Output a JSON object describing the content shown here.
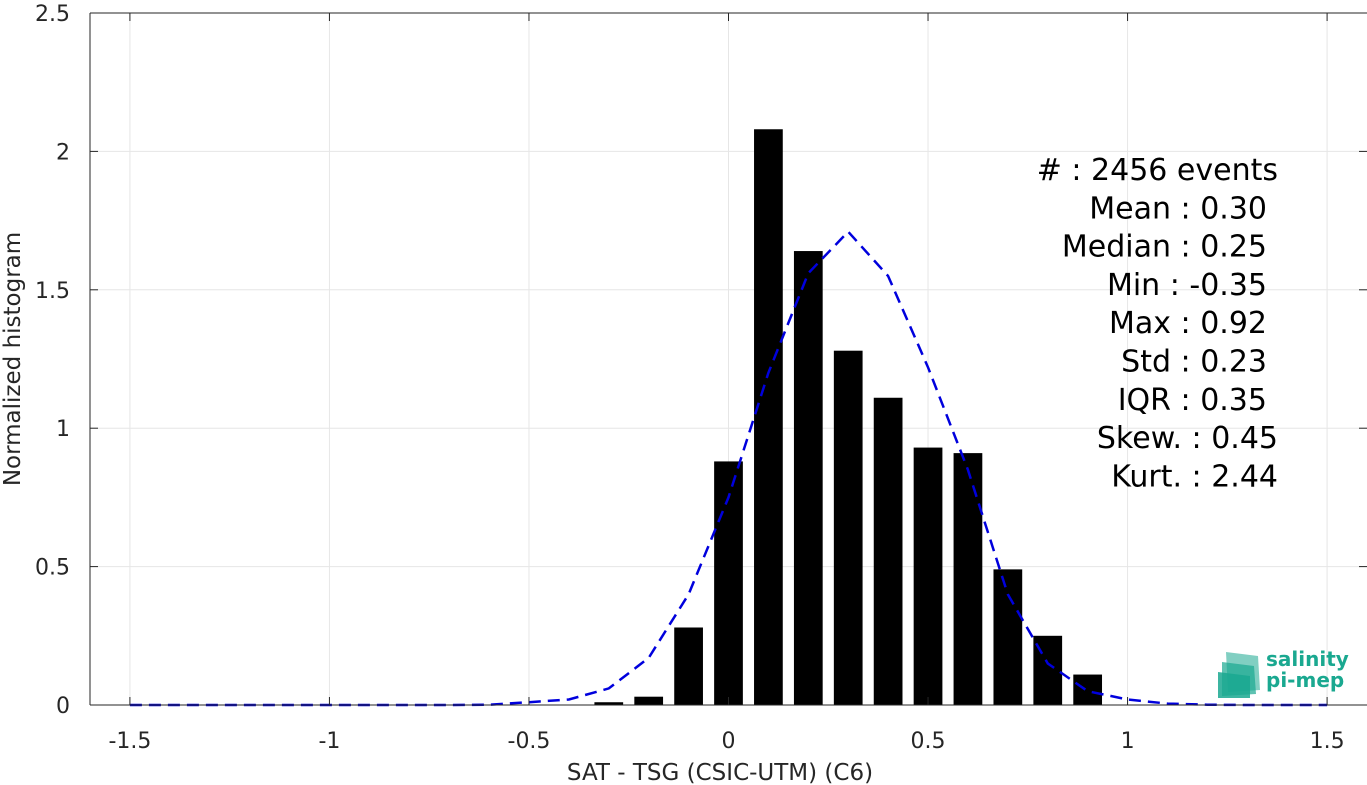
{
  "chart_data": {
    "type": "bar",
    "xlabel": "SAT - TSG (CSIC-UTM) (C6)",
    "ylabel": "Normalized histogram",
    "xlim": [
      -1.6,
      1.6
    ],
    "ylim": [
      0,
      2.5
    ],
    "xticks": [
      -1.5,
      -1,
      -0.5,
      0,
      0.5,
      1,
      1.5
    ],
    "xtick_labels": [
      "-1.5",
      "-1",
      "-0.5",
      "0",
      "0.5",
      "1",
      "1.5"
    ],
    "yticks": [
      0,
      0.5,
      1,
      1.5,
      2,
      2.5
    ],
    "ytick_labels": [
      "0",
      "0.5",
      "1",
      "1.5",
      "2",
      "2.5"
    ],
    "grid": true,
    "bar_color": "#000000",
    "bars": {
      "centers": [
        -0.3,
        -0.2,
        -0.1,
        0.0,
        0.1,
        0.2,
        0.3,
        0.4,
        0.5,
        0.6,
        0.7,
        0.8,
        0.9
      ],
      "values": [
        0.01,
        0.03,
        0.28,
        0.88,
        2.08,
        1.64,
        1.28,
        1.11,
        0.93,
        0.91,
        0.49,
        0.25,
        0.11
      ]
    },
    "fit_curve": {
      "style": "dashed",
      "color": "#0000dd",
      "x": [
        -1.5,
        -1.4,
        -1.3,
        -1.2,
        -1.1,
        -1.0,
        -0.9,
        -0.8,
        -0.7,
        -0.6,
        -0.5,
        -0.4,
        -0.3,
        -0.2,
        -0.1,
        0.0,
        0.1,
        0.2,
        0.3,
        0.4,
        0.5,
        0.6,
        0.7,
        0.8,
        0.9,
        1.0,
        1.1,
        1.2,
        1.3,
        1.4,
        1.5
      ],
      "y": [
        0,
        0,
        0,
        0,
        0,
        0,
        0,
        0,
        0,
        0.001,
        0.01,
        0.02,
        0.06,
        0.17,
        0.4,
        0.75,
        1.2,
        1.56,
        1.71,
        1.55,
        1.22,
        0.85,
        0.4,
        0.15,
        0.05,
        0.02,
        0.005,
        0.001,
        0,
        0,
        0
      ]
    },
    "stats": [
      {
        "label": "#  : 2456 events"
      },
      {
        "label": "Mean : 0.30"
      },
      {
        "label": "Median : 0.25"
      },
      {
        "label": "Min : -0.35"
      },
      {
        "label": "Max : 0.92"
      },
      {
        "label": "Std : 0.23"
      },
      {
        "label": "IQR : 0.35"
      },
      {
        "label": "Skew. : 0.45"
      },
      {
        "label": "Kurt. : 2.44"
      }
    ]
  },
  "logo": {
    "line1": "salinity",
    "line2": "pi-mep"
  }
}
